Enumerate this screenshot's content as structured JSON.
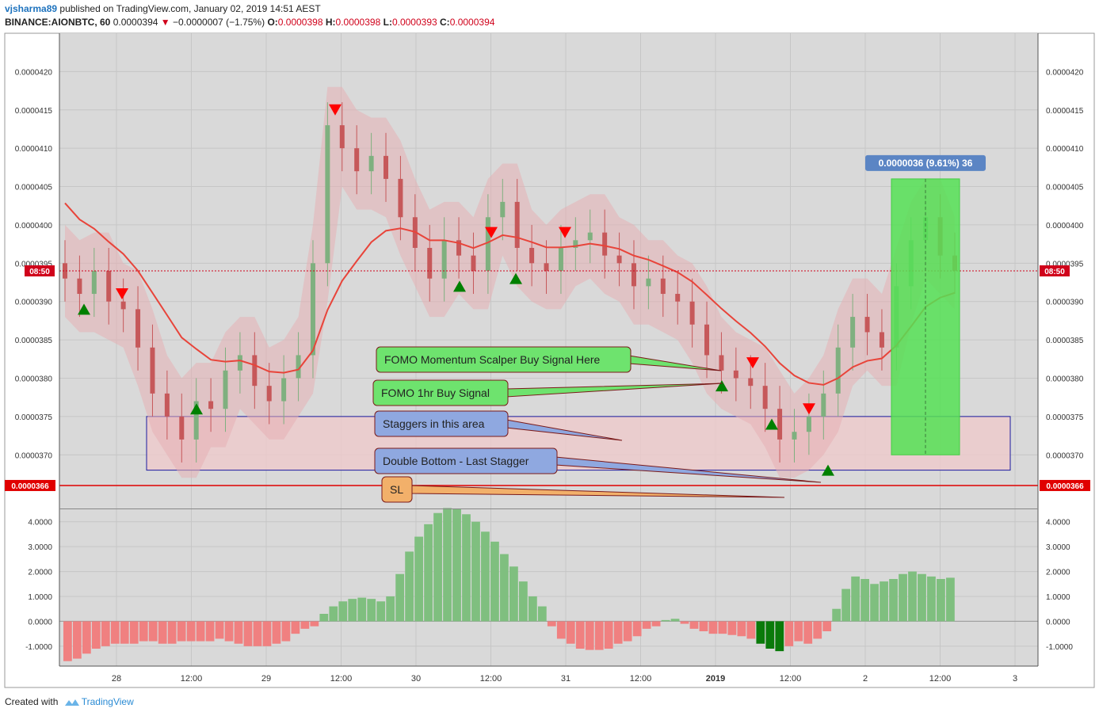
{
  "header": {
    "author": "vjsharma89",
    "published_text": "published on TradingView.com, January 02, 2019 14:51 AEST",
    "symbol": "BINANCE:AIONBTC, 60",
    "last": "0.0000394",
    "change": "−0.0000007 (−1.75%)",
    "o_label": "O:",
    "o": "0.0000398",
    "h_label": "H:",
    "h": "0.0000398",
    "l_label": "L:",
    "l": "0.0000393",
    "c_label": "C:",
    "c": "0.0000394"
  },
  "footer": {
    "created_with": "Created with",
    "brand": "TradingView"
  },
  "colors": {
    "up": "#7fb07f",
    "down": "#c6585a",
    "ma": "#e8443a",
    "signal_up": "#008000",
    "signal_down": "#ff0000",
    "box_fill": "#edc9cb",
    "box_stroke": "#1a1aa0",
    "sl_line": "#e00000",
    "hist_up": "#7fbf7f",
    "hist_down": "#f08080",
    "hist_up_strong": "#0a7a0a",
    "measure_fill": "#55e055"
  },
  "chart_data": [
    {
      "type": "candlestick",
      "y_ticks": [
        "0.0000420",
        "0.0000415",
        "0.0000410",
        "0.0000405",
        "0.0000400",
        "0.0000395",
        "0.0000390",
        "0.0000385",
        "0.0000380",
        "0.0000375",
        "0.0000370"
      ],
      "ylim": [
        3.63e-05,
        4.25e-05
      ],
      "x_ticks": [
        "28",
        "12:00",
        "29",
        "12:00",
        "30",
        "12:00",
        "31",
        "12:00",
        "2019",
        "12:00",
        "2",
        "12:00",
        "3"
      ],
      "current_price_marker": "08:50",
      "sl_price_label": "0.0000366",
      "sl_price": 3.66e-05,
      "measure_label": "0.0000036 (9.61%) 36",
      "measure_range": [
        3.7e-05,
        4.06e-05
      ],
      "support_zone": [
        3.68e-05,
        3.75e-05
      ],
      "close_series": [
        3.93e-05,
        3.91e-05,
        3.94e-05,
        3.9e-05,
        3.89e-05,
        3.84e-05,
        3.78e-05,
        3.75e-05,
        3.72e-05,
        3.77e-05,
        3.76e-05,
        3.81e-05,
        3.83e-05,
        3.79e-05,
        3.77e-05,
        3.8e-05,
        3.83e-05,
        3.95e-05,
        4.13e-05,
        4.1e-05,
        4.07e-05,
        4.09e-05,
        4.06e-05,
        4.01e-05,
        3.97e-05,
        3.93e-05,
        3.98e-05,
        3.96e-05,
        3.94e-05,
        4.01e-05,
        4.03e-05,
        3.97e-05,
        3.95e-05,
        3.94e-05,
        3.97e-05,
        3.98e-05,
        3.99e-05,
        3.96e-05,
        3.95e-05,
        3.92e-05,
        3.93e-05,
        3.91e-05,
        3.9e-05,
        3.87e-05,
        3.83e-05,
        3.81e-05,
        3.8e-05,
        3.79e-05,
        3.76e-05,
        3.72e-05,
        3.73e-05,
        3.75e-05,
        3.78e-05,
        3.84e-05,
        3.88e-05,
        3.86e-05,
        3.84e-05,
        3.92e-05,
        3.98e-05,
        4.01e-05,
        3.96e-05,
        3.94e-05
      ],
      "signals_buy": [
        3.89e-05,
        3.76e-05,
        3.92e-05,
        3.93e-05,
        3.79e-05,
        3.74e-05,
        3.68e-05
      ],
      "signals_sell": [
        3.91e-05,
        4.15e-05,
        3.99e-05,
        3.99e-05,
        3.82e-05,
        3.76e-05
      ]
    },
    {
      "type": "bar",
      "y_ticks": [
        "4.0000",
        "3.0000",
        "2.0000",
        "1.0000",
        "0.0000",
        "-1.0000"
      ],
      "ylim": [
        -1.8,
        4.5
      ],
      "values": [
        -1.6,
        -1.5,
        -1.3,
        -1.1,
        -1.0,
        -0.9,
        -0.9,
        -0.9,
        -0.8,
        -0.8,
        -0.9,
        -0.9,
        -0.8,
        -0.8,
        -0.8,
        -0.8,
        -0.7,
        -0.8,
        -0.9,
        -1.0,
        -1.0,
        -1.0,
        -0.9,
        -0.8,
        -0.5,
        -0.3,
        -0.2,
        0.3,
        0.6,
        0.8,
        0.9,
        0.95,
        0.9,
        0.8,
        1.0,
        1.9,
        2.8,
        3.4,
        3.9,
        4.35,
        4.55,
        4.5,
        4.3,
        4.0,
        3.6,
        3.2,
        2.7,
        2.2,
        1.6,
        1.0,
        0.6,
        -0.2,
        -0.7,
        -0.9,
        -1.1,
        -1.15,
        -1.15,
        -1.1,
        -0.9,
        -0.8,
        -0.6,
        -0.3,
        -0.2,
        0.05,
        0.1,
        -0.1,
        -0.3,
        -0.4,
        -0.5,
        -0.5,
        -0.55,
        -0.6,
        -0.7,
        -0.9,
        -1.1,
        -1.2,
        -1.0,
        -0.8,
        -0.9,
        -0.7,
        -0.4,
        0.5,
        1.3,
        1.8,
        1.7,
        1.5,
        1.6,
        1.7,
        1.9,
        2.0,
        1.9,
        1.8,
        1.7,
        1.75
      ]
    }
  ],
  "annotations": [
    {
      "text": "FOMO Momentum Scalper Buy Signal Here",
      "fill": "#6ee36e"
    },
    {
      "text": "FOMO 1hr Buy Signal",
      "fill": "#6ee36e"
    },
    {
      "text": "Staggers in this area",
      "fill": "#8fa8e0"
    },
    {
      "text": "Double Bottom - Last Stagger",
      "fill": "#8fa8e0"
    },
    {
      "text": "SL",
      "fill": "#f2b06a"
    }
  ]
}
